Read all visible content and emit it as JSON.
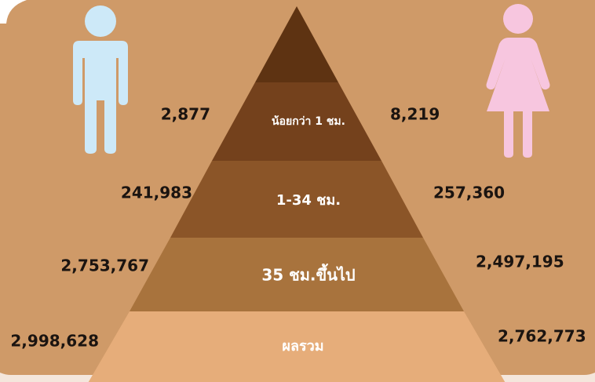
{
  "rows": [
    {
      "label": "น้อยกว่า 1 ชม.",
      "male": "2,877",
      "female": "8,219"
    },
    {
      "label": "1-34 ชม.",
      "male": "241,983",
      "female": "257,360"
    },
    {
      "label": "35 ชม.ขึ้นไป",
      "male": "2,753,767",
      "female": "2,497,195"
    },
    {
      "label": "ผลรวม",
      "male": "2,998,628",
      "female": "2,762,773"
    }
  ]
}
